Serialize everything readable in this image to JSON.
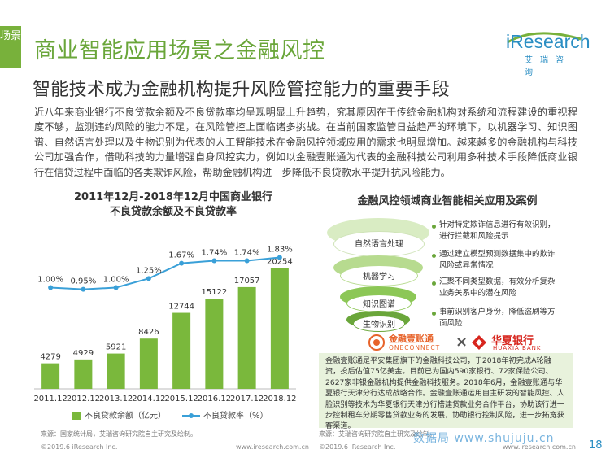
{
  "side_tab": "场景",
  "title": "商业智能应用场景之金融风控",
  "logo": {
    "text": "iResearch",
    "sub": "艾瑞咨询"
  },
  "subtitle": "智能技术成为金融机构提升风险管控能力的重要手段",
  "paragraph": "近八年来商业银行不良贷款余额及不良贷款率均呈现明显上升趋势，究其原因在于传统金融机构对系统和流程建设的重视程度不够，监测违约风险的能力不足，在风险管控上面临诸多挑战。在当前国家监管日益趋严的环境下，以机器学习、知识图谱、自然语言处理以及生物识别为代表的人工智能技术在金融风控领域应用的需求也明显增加。越来越多的金融机构与科技公司加强合作，借助科技的力量增强自身风控实力，例如以金融壹账通为代表的金融科技公司利用多种技术手段降低商业银行在信贷过程中面临的各类欺诈风险，帮助金融机构进一步降低不良贷款水平提升抗风险能力。",
  "chart_title_line1": "2011年12月-2018年12月中国商业银行",
  "chart_title_line2": "不良贷款余额及不良贷款率",
  "chart_data": {
    "type": "bar",
    "categories": [
      "2011.12",
      "2012.12",
      "2013.12",
      "2014.12",
      "2015.12",
      "2016.12",
      "2017.12",
      "2018.12"
    ],
    "series": [
      {
        "name": "不良贷款余额（亿元）",
        "type": "bar",
        "values": [
          4279,
          4929,
          5921,
          8426,
          12744,
          15122,
          17057,
          20254
        ],
        "labels": [
          "4279",
          "4929",
          "5921",
          "8426",
          "12744",
          "15122",
          "17057",
          "20254"
        ]
      },
      {
        "name": "不良贷款率（%）",
        "type": "line",
        "values": [
          1.0,
          0.95,
          1.0,
          1.25,
          1.67,
          1.74,
          1.74,
          1.83
        ],
        "labels": [
          "1.00%",
          "0.95%",
          "1.00%",
          "1.25%",
          "1.67%",
          "1.74%",
          "1.74%",
          "1.83%"
        ]
      }
    ],
    "colors": {
      "bar": "#7ab83c",
      "line": "#3aa0d8"
    }
  },
  "legend": {
    "bar": "不良贷款余额（亿元）",
    "line": "不良贷款率（%）"
  },
  "source_left": "来源：国家统计局，艾瑞咨询研究院自主研究及绘制。",
  "copyright": "©2019.6 iResearch Inc.",
  "url": "www.iresearch.com.cn",
  "right_title": "金融风控领域商业智能相关应用及案例",
  "layers": [
    {
      "label": "自然语言处理",
      "desc": "针对特定欺诈信息进行有效识别，进行拦截和风险提示"
    },
    {
      "label": "机器学习",
      "desc": "通过建立模型预测数据集中的欺诈风险或异常情况"
    },
    {
      "label": "知识图谱",
      "desc": "汇聚不同类型数据，有效分析复杂业务关系中的潜在风险"
    },
    {
      "label": "生物识别",
      "desc": "事前识别客户身份，降低盗刷等方面风险"
    }
  ],
  "logos": {
    "left_cn": "金融壹账通",
    "left_en": "ONECONNECT",
    "times": "×",
    "right_cn": "华夏银行",
    "right_en": "HUAXIA BANK"
  },
  "case_text": "金融壹账通是平安集团旗下的金融科技公司，于2018年初完成A轮融资，投后估值75亿美金。目前已为国内590家银行、72家保险公司、2627家非银金融机构提供金融科技服务。2018年6月，金融壹账通与华夏银行天津分行达成战略合作。金融壹账通运用自主研发的智能风控、人脸识别等技术为华夏银行天津分行搭建贷款业务合作平台，协助该行进一步控制租车分期零售贷款业务的发展，协助银行控制风险，进一步拓宽获客渠道。",
  "source_right": "来源：艾瑞咨询研究院自主研究及绘制。",
  "watermark": "数据局 www.shujuju.cn",
  "page_number": "18"
}
